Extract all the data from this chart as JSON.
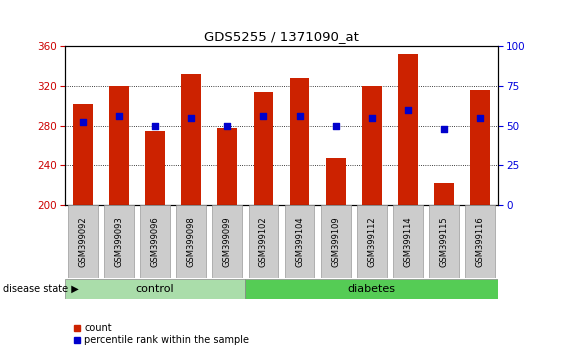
{
  "title": "GDS5255 / 1371090_at",
  "samples": [
    "GSM399092",
    "GSM399093",
    "GSM399096",
    "GSM399098",
    "GSM399099",
    "GSM399102",
    "GSM399104",
    "GSM399109",
    "GSM399112",
    "GSM399114",
    "GSM399115",
    "GSM399116"
  ],
  "counts": [
    302,
    320,
    275,
    332,
    278,
    314,
    328,
    248,
    320,
    352,
    222,
    316
  ],
  "percentile_ranks": [
    52,
    56,
    50,
    55,
    50,
    56,
    56,
    50,
    55,
    60,
    48,
    55
  ],
  "ylim_left": [
    200,
    360
  ],
  "ylim_right": [
    0,
    100
  ],
  "yticks_left": [
    200,
    240,
    280,
    320,
    360
  ],
  "yticks_right": [
    0,
    25,
    50,
    75,
    100
  ],
  "bar_color": "#cc2200",
  "dot_color": "#0000cc",
  "bar_width": 0.55,
  "ctrl_color": "#aaddaa",
  "diab_color": "#55cc55",
  "tick_bg_color": "#cccccc",
  "ctrl_samples": 5,
  "diab_samples": 7,
  "n_samples": 12
}
